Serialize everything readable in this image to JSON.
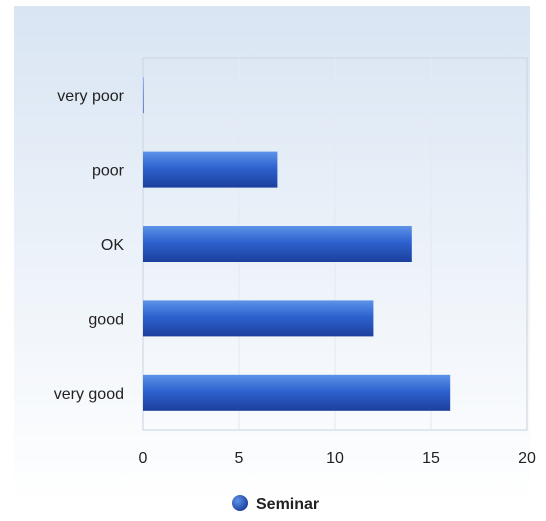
{
  "chart_data": {
    "type": "bar",
    "orientation": "horizontal",
    "categories": [
      "very poor",
      "poor",
      "OK",
      "good",
      "very good"
    ],
    "series": [
      {
        "name": "Seminar",
        "values": [
          0,
          7,
          14,
          12,
          16
        ]
      }
    ],
    "xlim": [
      0,
      20
    ],
    "x_ticks": [
      "0",
      "5",
      "10",
      "15",
      "20"
    ],
    "grid": true,
    "legend": "bottom",
    "colors": {
      "bar_top": "#5d93e8",
      "bar_mid": "#2e62cf",
      "bar_bottom": "#1c3f9c",
      "background_top": "#d9e5f3",
      "background_bottom": "#ffffff",
      "plot_border": "#c9d3e0",
      "grid": "#e4e9ef",
      "text": "#222222"
    }
  }
}
